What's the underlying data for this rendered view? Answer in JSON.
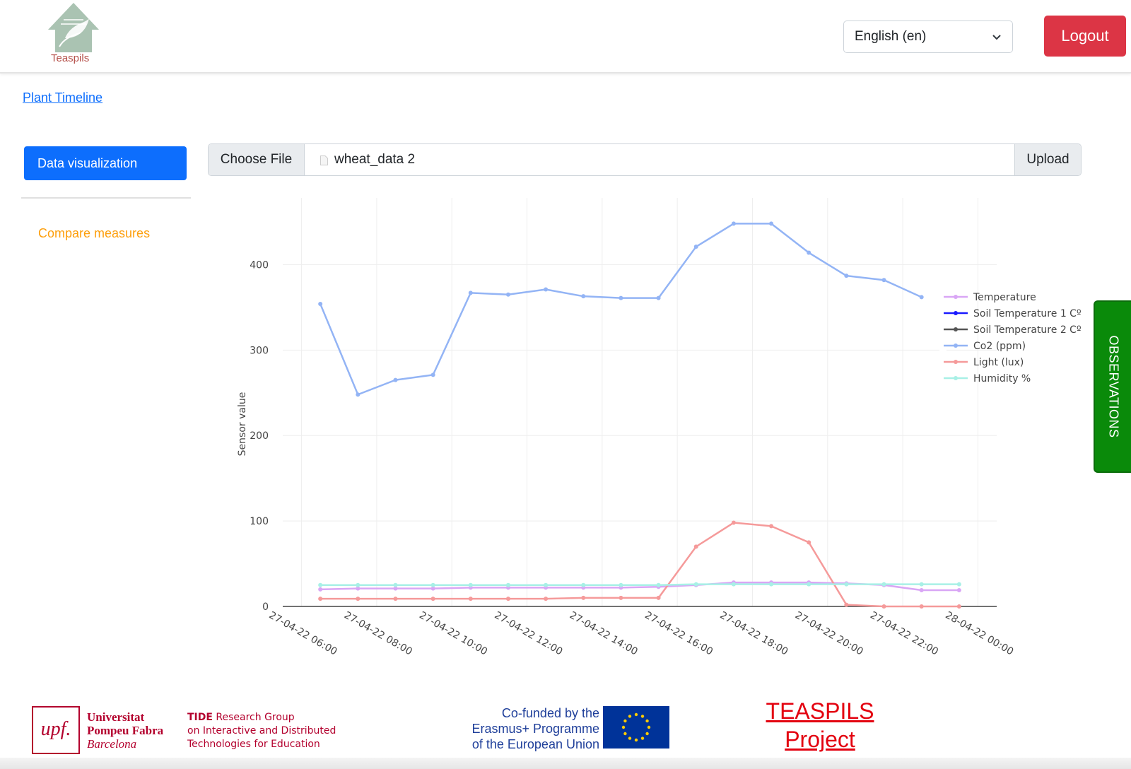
{
  "header": {
    "logo_text": "Teaspils",
    "language": "English (en)",
    "logout_label": "Logout"
  },
  "nav": {
    "timeline_link": "Plant Timeline"
  },
  "sidebar": {
    "items": [
      {
        "label": "Data visualization",
        "active": true
      },
      {
        "label": "Compare measures",
        "active": false
      }
    ]
  },
  "upload": {
    "choose_label": "Choose File",
    "file_name": "wheat_data 2",
    "upload_label": "Upload"
  },
  "observations_tab": "OBSERVATIONS",
  "footer": {
    "upf_logo": "upf.",
    "upf_line1": "Universitat",
    "upf_line2": "Pompeu Fabra",
    "upf_line3": "Barcelona",
    "tide_bold": "TIDE",
    "tide_line1_rest": " Research Group",
    "tide_line2": "on Interactive and Distributed",
    "tide_line3": "Technologies for Education",
    "eu_line1": "Co-funded by the",
    "eu_line2": "Erasmus+ Programme",
    "eu_line3": "of the European Union",
    "project_line1": "TEASPILS",
    "project_line2": "Project"
  },
  "colors": {
    "primary": "#0d6efd",
    "danger": "#dc3545",
    "accent_orange": "#fd9f0d",
    "observations_green": "#0a8a0a",
    "project_red": "#e3000f"
  },
  "chart_data": {
    "type": "line",
    "title": "",
    "xlabel": "",
    "ylabel": "Sensor value",
    "ylim": [
      0,
      450
    ],
    "yticks": [
      0,
      100,
      200,
      300,
      400
    ],
    "x_tick_labels": [
      "27-04-22 06:00",
      "27-04-22 08:00",
      "27-04-22 10:00",
      "27-04-22 12:00",
      "27-04-22 14:00",
      "27-04-22 16:00",
      "27-04-22 18:00",
      "27-04-22 20:00",
      "27-04-22 22:00",
      "28-04-22 00:00"
    ],
    "x_tick_hours": [
      6,
      8,
      10,
      12,
      14,
      16,
      18,
      20,
      22,
      24
    ],
    "xlim_hours": [
      5.5,
      24.5
    ],
    "x_hours": [
      6.5,
      7.5,
      8.5,
      9.5,
      10.5,
      11.5,
      12.5,
      13.5,
      14.5,
      15.5,
      16.5,
      17.5,
      18.5,
      19.5,
      20.5,
      21.5,
      22.5,
      23.5
    ],
    "grid": true,
    "legend_position": "right",
    "series": [
      {
        "name": "Temperature",
        "color": "#d9a6f5",
        "values": [
          20,
          21,
          21,
          21,
          22,
          22,
          22,
          22,
          22,
          23,
          25,
          28,
          28,
          28,
          27,
          25,
          19,
          19
        ]
      },
      {
        "name": "Soil Temperature 1 Cº",
        "color": "#1a1aff",
        "values": []
      },
      {
        "name": "Soil Temperature 2 Cº",
        "color": "#555555",
        "values": []
      },
      {
        "name": "Co2 (ppm)",
        "color": "#93b4f5",
        "values": [
          354,
          248,
          265,
          271,
          367,
          365,
          371,
          363,
          361,
          361,
          421,
          448,
          448,
          414,
          387,
          382,
          362,
          null
        ]
      },
      {
        "name": "Light (lux)",
        "color": "#f59a9a",
        "values": [
          9,
          9,
          9,
          9,
          9,
          9,
          9,
          10,
          10,
          10,
          70,
          98,
          94,
          75,
          2,
          0,
          0,
          0
        ]
      },
      {
        "name": "Humidity %",
        "color": "#a8f0e6",
        "values": [
          25,
          25,
          25,
          25,
          25,
          25,
          25,
          25,
          25,
          25,
          26,
          26,
          26,
          26,
          26,
          26,
          26,
          26
        ]
      }
    ]
  }
}
